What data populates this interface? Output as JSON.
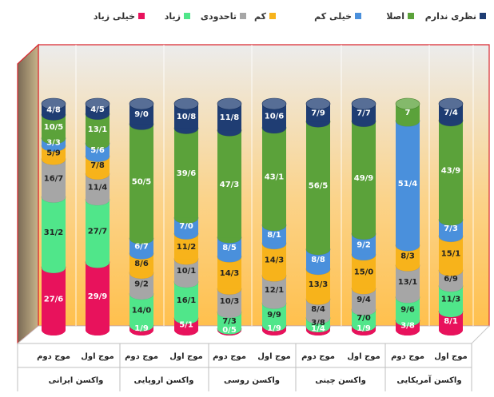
{
  "chart_data": {
    "type": "bar",
    "stacked": true,
    "percent_stacked": true,
    "legend": {
      "placement": "top",
      "entries": [
        {
          "key": "na",
          "label": "نظری ندارم",
          "color": "#1F3D73"
        },
        {
          "key": "no",
          "label": "اصلا",
          "color": "#5BA23A"
        },
        {
          "key": "vlow",
          "label": "خیلی کم",
          "color": "#4A90DC"
        },
        {
          "key": "low",
          "label": "کم",
          "color": "#F7B31B"
        },
        {
          "key": "mid",
          "label": "تاحدودی",
          "color": "#A6A6A6"
        },
        {
          "key": "high",
          "label": "زیاد",
          "color": "#50E68A"
        },
        {
          "key": "vhigh",
          "label": "خیلی زیاد",
          "color": "#E8125C"
        }
      ]
    },
    "groups": [
      {
        "label": "واکسن آمریکایی",
        "bars": [
          "موج اول",
          "موج دوم"
        ]
      },
      {
        "label": "واکسن چینی",
        "bars": [
          "موج اول",
          "موج دوم"
        ]
      },
      {
        "label": "واکسن روسی",
        "bars": [
          "موج اول",
          "موج دوم"
        ]
      },
      {
        "label": "واکسن اروپایی",
        "bars": [
          "موج اول",
          "موج دوم"
        ]
      },
      {
        "label": "واکسن ایرانی",
        "bars": [
          "موج اول",
          "موج دوم"
        ]
      }
    ],
    "series_order_bottom_to_top": [
      "vhigh",
      "high",
      "mid",
      "low",
      "vlow",
      "no",
      "na"
    ],
    "bars": [
      {
        "group": 0,
        "wave": "موج اول",
        "values": [
          8.1,
          11.3,
          6.9,
          15.1,
          7.3,
          43.9,
          7.4
        ],
        "labels": [
          "8/1",
          "11/3",
          "6/9",
          "15/1",
          "7/3",
          "43/9",
          "7/4"
        ]
      },
      {
        "group": 0,
        "wave": "موج دوم",
        "values": [
          3.8,
          9.6,
          13.1,
          8.3,
          51.4,
          7.0,
          0
        ],
        "labels": [
          "3/8",
          "9/6",
          "13/1",
          "8/3",
          "51/4",
          "7",
          ""
        ]
      },
      {
        "group": 1,
        "wave": "موج اول",
        "values": [
          1.9,
          7.0,
          9.4,
          15.0,
          9.2,
          49.9,
          7.7
        ],
        "labels": [
          "1/9",
          "7/0",
          "9/4",
          "15/0",
          "9/2",
          "49/9",
          "7/7"
        ]
      },
      {
        "group": 1,
        "wave": "موج دوم",
        "values": [
          1.4,
          3.8,
          8.4,
          13.3,
          8.8,
          56.5,
          7.9
        ],
        "labels": [
          "1/4",
          "3/8",
          "8/4",
          "13/3",
          "8/8",
          "56/5",
          "7/9"
        ]
      },
      {
        "group": 2,
        "wave": "موج اول",
        "values": [
          1.9,
          9.9,
          12.1,
          14.3,
          8.1,
          43.1,
          10.6
        ],
        "labels": [
          "1/9",
          "9/9",
          "12/1",
          "14/3",
          "8/1",
          "43/1",
          "10/6"
        ]
      },
      {
        "group": 2,
        "wave": "موج دوم",
        "values": [
          0.5,
          7.3,
          10.3,
          14.3,
          8.5,
          47.3,
          11.8
        ],
        "labels": [
          "0/5",
          "7/3",
          "10/3",
          "14/3",
          "8/5",
          "47/3",
          "11/8"
        ]
      },
      {
        "group": 3,
        "wave": "موج اول",
        "values": [
          5.1,
          16.1,
          10.1,
          11.2,
          7.0,
          39.6,
          10.8
        ],
        "labels": [
          "5/1",
          "16/1",
          "10/1",
          "11/2",
          "7/0",
          "39/6",
          "10/8"
        ]
      },
      {
        "group": 3,
        "wave": "موج دوم",
        "values": [
          1.9,
          14.0,
          9.2,
          8.6,
          6.7,
          50.5,
          9.0
        ],
        "labels": [
          "1/9",
          "14/0",
          "9/2",
          "8/6",
          "6/7",
          "50/5",
          "9/0"
        ]
      },
      {
        "group": 4,
        "wave": "موج اول",
        "values": [
          29.9,
          27.7,
          11.4,
          7.8,
          5.6,
          13.1,
          4.5
        ],
        "labels": [
          "29/9",
          "27/7",
          "11/4",
          "7/8",
          "5/6",
          "13/1",
          "4/5"
        ]
      },
      {
        "group": 4,
        "wave": "موج دوم",
        "values": [
          27.6,
          31.2,
          16.7,
          5.9,
          3.3,
          10.5,
          4.8
        ],
        "labels": [
          "27/6",
          "31/2",
          "16/7",
          "5/9",
          "3/3",
          "10/5",
          "4/8"
        ]
      }
    ],
    "grid": true,
    "ylim": [
      0,
      100
    ],
    "xlabel": "",
    "ylabel": ""
  }
}
